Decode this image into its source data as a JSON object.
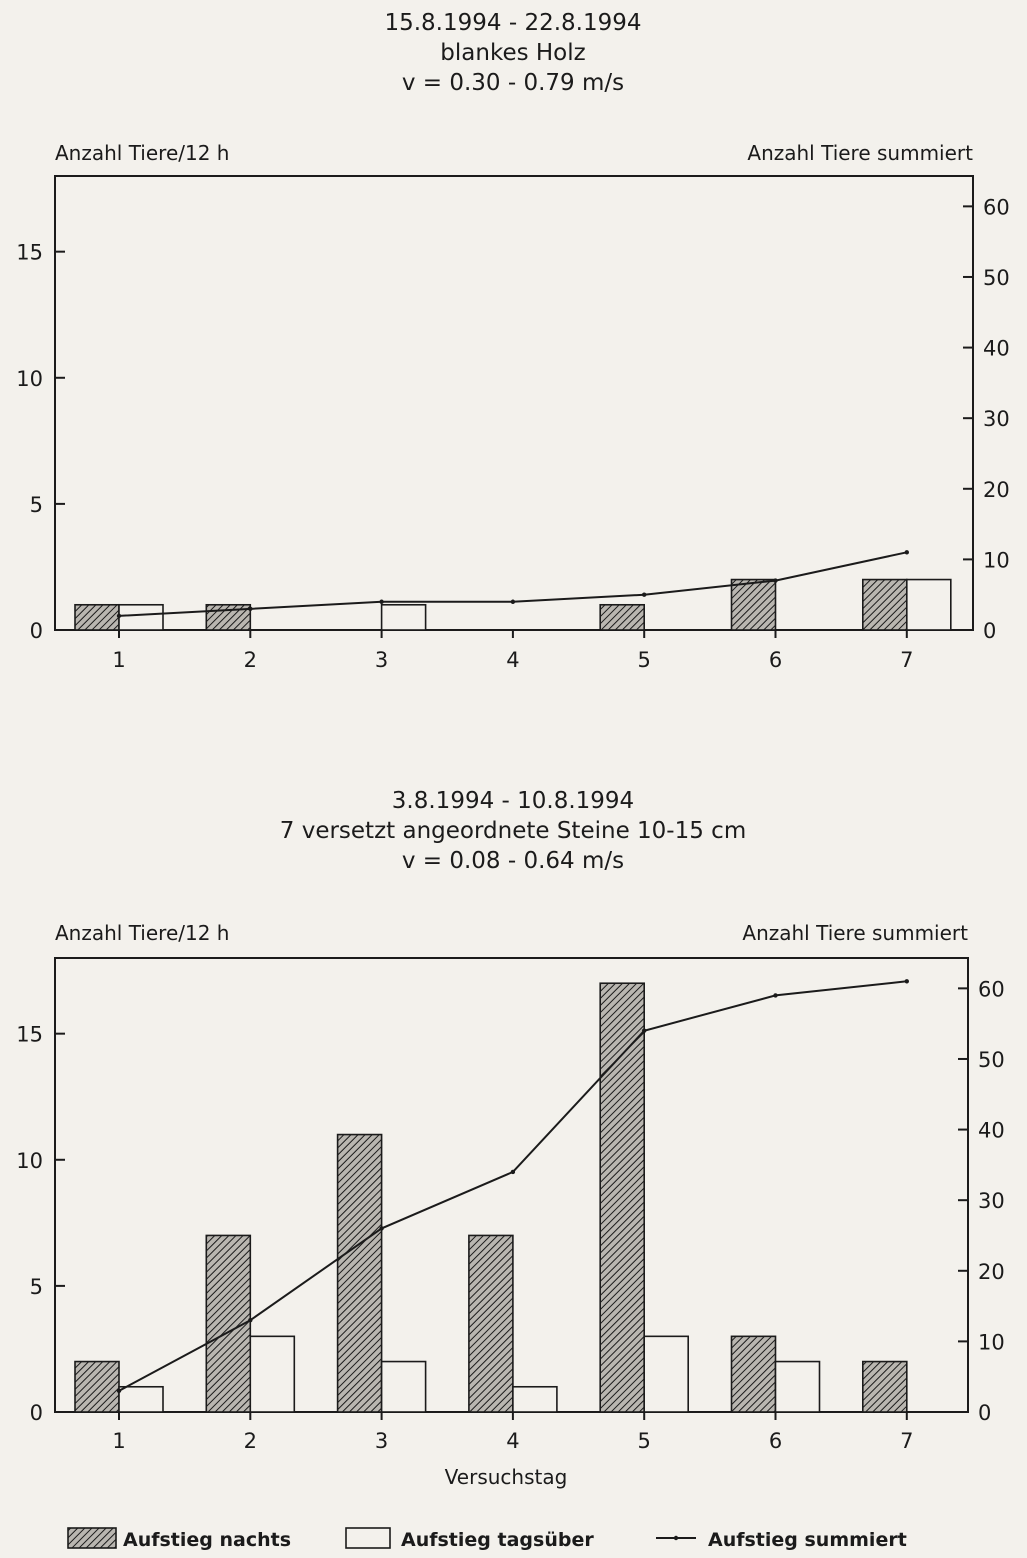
{
  "chart_data": [
    {
      "type": "bar",
      "title_lines": [
        "15.8.1994 - 22.8.1994",
        "blankes Holz",
        "v = 0.30 - 0.79 m/s"
      ],
      "ylabel_left": "Anzahl Tiere/12 h",
      "ylabel_right": "Anzahl Tiere summiert",
      "xlabel": "",
      "categories": [
        "1",
        "2",
        "3",
        "4",
        "5",
        "6",
        "7"
      ],
      "ylim_left": [
        0,
        18
      ],
      "ylim_right": [
        0,
        64.3
      ],
      "yticks_left": [
        0,
        5,
        10,
        15
      ],
      "yticks_right": [
        0,
        10,
        20,
        30,
        40,
        50,
        60
      ],
      "series": [
        {
          "name": "Aufstieg nachts",
          "axis": "left",
          "style": "hatched",
          "values": [
            1,
            1,
            0,
            0,
            1,
            2,
            2
          ]
        },
        {
          "name": "Aufstieg tagsüber",
          "axis": "left",
          "style": "open",
          "values": [
            1,
            0,
            1,
            0,
            0,
            0,
            2
          ]
        },
        {
          "name": "Aufstieg summiert",
          "axis": "right",
          "style": "line",
          "values": [
            2,
            3,
            4,
            4,
            5,
            7,
            11
          ]
        }
      ]
    },
    {
      "type": "bar",
      "title_lines": [
        "3.8.1994 - 10.8.1994",
        "7 versetzt angeordnete Steine 10-15 cm",
        "v = 0.08 - 0.64 m/s"
      ],
      "ylabel_left": "Anzahl Tiere/12 h",
      "ylabel_right": "Anzahl Tiere summiert",
      "xlabel": "Versuchstag",
      "categories": [
        "1",
        "2",
        "3",
        "4",
        "5",
        "6",
        "7"
      ],
      "ylim_left": [
        0,
        18
      ],
      "ylim_right": [
        0,
        64.3
      ],
      "yticks_left": [
        0,
        5,
        10,
        15
      ],
      "yticks_right": [
        0,
        10,
        20,
        30,
        40,
        50,
        60
      ],
      "series": [
        {
          "name": "Aufstieg nachts",
          "axis": "left",
          "style": "hatched",
          "values": [
            2,
            7,
            11,
            7,
            17,
            3,
            2
          ]
        },
        {
          "name": "Aufstieg tagsüber",
          "axis": "left",
          "style": "open",
          "values": [
            1,
            3,
            2,
            1,
            3,
            2,
            0
          ]
        },
        {
          "name": "Aufstieg summiert",
          "axis": "right",
          "style": "line",
          "values": [
            3,
            13,
            26,
            34,
            54,
            59,
            61
          ]
        }
      ]
    }
  ],
  "legend": [
    {
      "label": "Aufstieg nachts",
      "style": "hatched"
    },
    {
      "label": "Aufstieg tagsüber",
      "style": "open"
    },
    {
      "label": "Aufstieg summiert",
      "style": "line"
    }
  ],
  "colors": {
    "ink": "#1b1b1b",
    "paper": "#f3f1ec",
    "hatch_fill": "#b9b6b0"
  }
}
